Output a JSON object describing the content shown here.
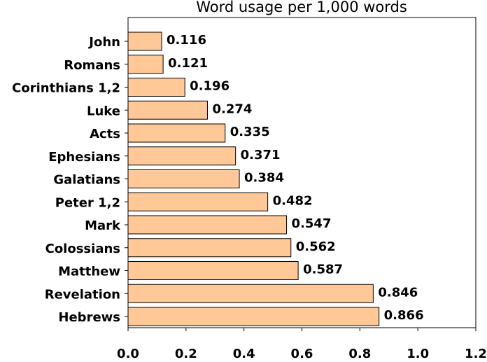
{
  "chart_data": {
    "type": "bar",
    "orientation": "horizontal",
    "title": "Word usage per 1,000 words",
    "categories": [
      "John",
      "Romans",
      "Corinthians 1,2",
      "Luke",
      "Acts",
      "Ephesians",
      "Galatians",
      "Peter 1,2",
      "Mark",
      "Colossians",
      "Matthew",
      "Revelation",
      "Hebrews"
    ],
    "values": [
      0.116,
      0.121,
      0.196,
      0.274,
      0.335,
      0.371,
      0.384,
      0.482,
      0.547,
      0.562,
      0.587,
      0.846,
      0.866
    ],
    "color": "#ffc896",
    "xlim": [
      0,
      1.2
    ],
    "xticks": [
      {
        "value": 0,
        "label": "0.0"
      },
      0.2,
      0.4,
      0.6,
      0.8,
      {
        "value": 1,
        "label": "1.0"
      },
      1.2
    ],
    "grid": false
  }
}
